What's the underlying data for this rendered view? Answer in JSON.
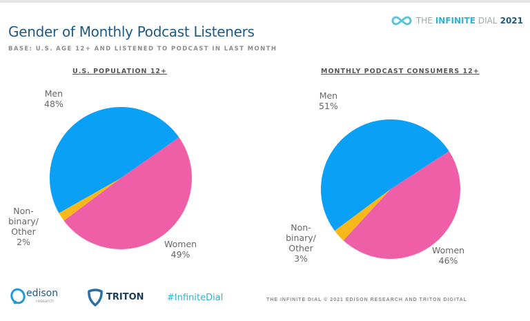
{
  "header": {
    "title": "Gender of Monthly Podcast Listeners",
    "subtitle": "BASE: U.S. AGE 12+ AND LISTENED TO PODCAST IN LAST MONTH",
    "brand_prefix": "THE",
    "brand_main": "INFINITE",
    "brand_suffix": "DIAL",
    "brand_year": "2021"
  },
  "colors": {
    "men": "#0aa0f5",
    "women": "#ef5fa7",
    "nonbinary": "#f6b81a"
  },
  "chart_data": [
    {
      "type": "pie",
      "title": "U.S. POPULATION 12+",
      "categories": [
        "Men",
        "Non-binary/Other",
        "Women"
      ],
      "values": [
        48,
        2,
        49
      ],
      "labels": [
        {
          "name": "Men",
          "value": "48%"
        },
        {
          "name": "Non-binary/ Other",
          "value": "2%"
        },
        {
          "name": "Women",
          "value": "49%"
        }
      ]
    },
    {
      "type": "pie",
      "title": "MONTHLY PODCAST CONSUMERS 12+",
      "categories": [
        "Men",
        "Non-binary/Other",
        "Women"
      ],
      "values": [
        51,
        3,
        46
      ],
      "labels": [
        {
          "name": "Men",
          "value": "51%"
        },
        {
          "name": "Non-binary/ Other",
          "value": "3%"
        },
        {
          "name": "Women",
          "value": "46%"
        }
      ]
    }
  ],
  "footer": {
    "edison": "edison",
    "edison_sub": "research",
    "triton": "TRITON",
    "hashtag": "#InfiniteDial",
    "copyright": "THE INFINITE DIAL   © 2021 EDISON RESEARCH AND TRITON DIGITAL"
  }
}
